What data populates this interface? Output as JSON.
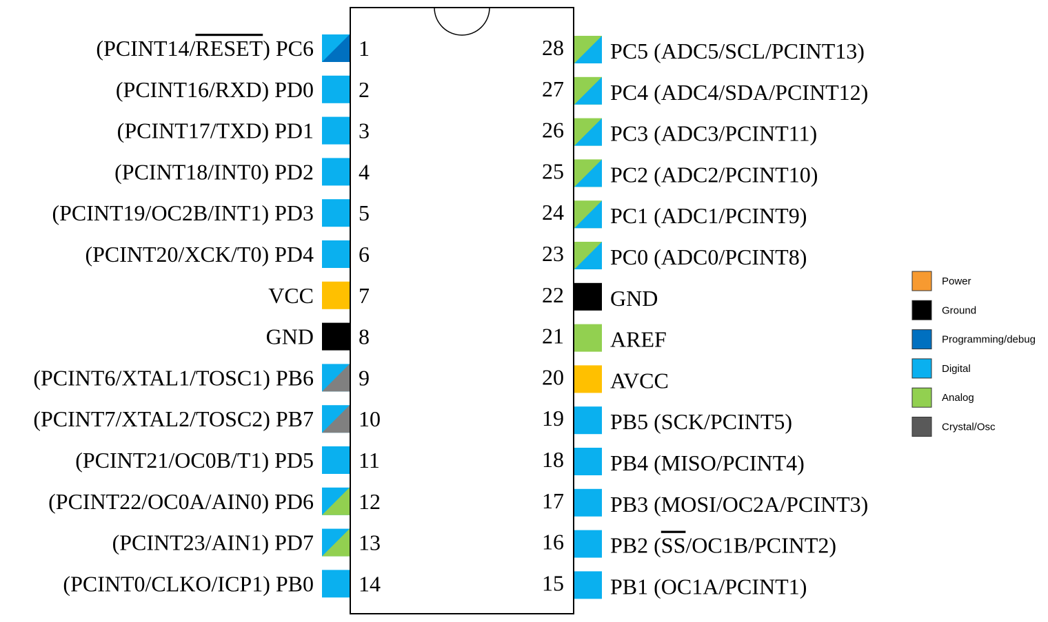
{
  "left_pins": [
    {
      "number": 1,
      "label": [
        {
          "text": "(PCINT14/"
        },
        {
          "text": "RESET",
          "overline": true
        },
        {
          "text": ") PC6"
        }
      ],
      "colors": [
        "#0ab0ef",
        "#0070c0"
      ]
    },
    {
      "number": 2,
      "label": "(PCINT16/RXD) PD0",
      "colors": [
        "#0ab0ef"
      ]
    },
    {
      "number": 3,
      "label": "(PCINT17/TXD) PD1",
      "colors": [
        "#0ab0ef"
      ]
    },
    {
      "number": 4,
      "label": "(PCINT18/INT0) PD2",
      "colors": [
        "#0ab0ef"
      ]
    },
    {
      "number": 5,
      "label": "(PCINT19/OC2B/INT1) PD3",
      "colors": [
        "#0ab0ef"
      ]
    },
    {
      "number": 6,
      "label": "(PCINT20/XCK/T0) PD4",
      "colors": [
        "#0ab0ef"
      ]
    },
    {
      "number": 7,
      "label": "VCC",
      "colors": [
        "#ffc000"
      ]
    },
    {
      "number": 8,
      "label": "GND",
      "colors": [
        "#000000"
      ]
    },
    {
      "number": 9,
      "label": "(PCINT6/XTAL1/TOSC1) PB6",
      "colors": [
        "#0ab0ef",
        "#808080"
      ]
    },
    {
      "number": 10,
      "label": "(PCINT7/XTAL2/TOSC2) PB7",
      "colors": [
        "#0ab0ef",
        "#808080"
      ]
    },
    {
      "number": 11,
      "label": "(PCINT21/OC0B/T1) PD5",
      "colors": [
        "#0ab0ef"
      ]
    },
    {
      "number": 12,
      "label": "(PCINT22/OC0A/AIN0) PD6",
      "colors": [
        "#0ab0ef",
        "#92d050"
      ]
    },
    {
      "number": 13,
      "label": "(PCINT23/AIN1) PD7",
      "colors": [
        "#0ab0ef",
        "#92d050"
      ]
    },
    {
      "number": 14,
      "label": "(PCINT0/CLKO/ICP1) PB0",
      "colors": [
        "#0ab0ef"
      ]
    }
  ],
  "right_pins": [
    {
      "number": 28,
      "label": "PC5 (ADC5/SCL/PCINT13)",
      "colors": [
        "#92d050",
        "#0ab0ef"
      ]
    },
    {
      "number": 27,
      "label": "PC4 (ADC4/SDA/PCINT12)",
      "colors": [
        "#92d050",
        "#0ab0ef"
      ]
    },
    {
      "number": 26,
      "label": "PC3 (ADC3/PCINT11)",
      "colors": [
        "#92d050",
        "#0ab0ef"
      ]
    },
    {
      "number": 25,
      "label": "PC2 (ADC2/PCINT10)",
      "colors": [
        "#92d050",
        "#0ab0ef"
      ]
    },
    {
      "number": 24,
      "label": "PC1 (ADC1/PCINT9)",
      "colors": [
        "#92d050",
        "#0ab0ef"
      ]
    },
    {
      "number": 23,
      "label": "PC0 (ADC0/PCINT8)",
      "colors": [
        "#92d050",
        "#0ab0ef"
      ]
    },
    {
      "number": 22,
      "label": "GND",
      "colors": [
        "#000000"
      ]
    },
    {
      "number": 21,
      "label": "AREF",
      "colors": [
        "#92d050"
      ]
    },
    {
      "number": 20,
      "label": "AVCC",
      "colors": [
        "#ffc000"
      ]
    },
    {
      "number": 19,
      "label": "PB5 (SCK/PCINT5)",
      "colors": [
        "#0ab0ef"
      ]
    },
    {
      "number": 18,
      "label": "PB4 (MISO/PCINT4)",
      "colors": [
        "#0ab0ef"
      ]
    },
    {
      "number": 17,
      "label": "PB3 (MOSI/OC2A/PCINT3)",
      "colors": [
        "#0ab0ef"
      ]
    },
    {
      "number": 16,
      "label": [
        {
          "text": "PB2 ("
        },
        {
          "text": "SS",
          "overline": true
        },
        {
          "text": "/OC1B/PCINT2)"
        }
      ],
      "colors": [
        "#0ab0ef"
      ]
    },
    {
      "number": 15,
      "label": "PB1 (OC1A/PCINT1)",
      "colors": [
        "#0ab0ef"
      ]
    }
  ],
  "legend": [
    {
      "label": "Power",
      "color": "#f79a30"
    },
    {
      "label": "Ground",
      "color": "#000000"
    },
    {
      "label": "Programming/debug",
      "color": "#0070c0"
    },
    {
      "label": "Digital",
      "color": "#0ab0ef"
    },
    {
      "label": "Analog",
      "color": "#92d050"
    },
    {
      "label": "Crystal/Osc",
      "color": "#595959"
    }
  ]
}
